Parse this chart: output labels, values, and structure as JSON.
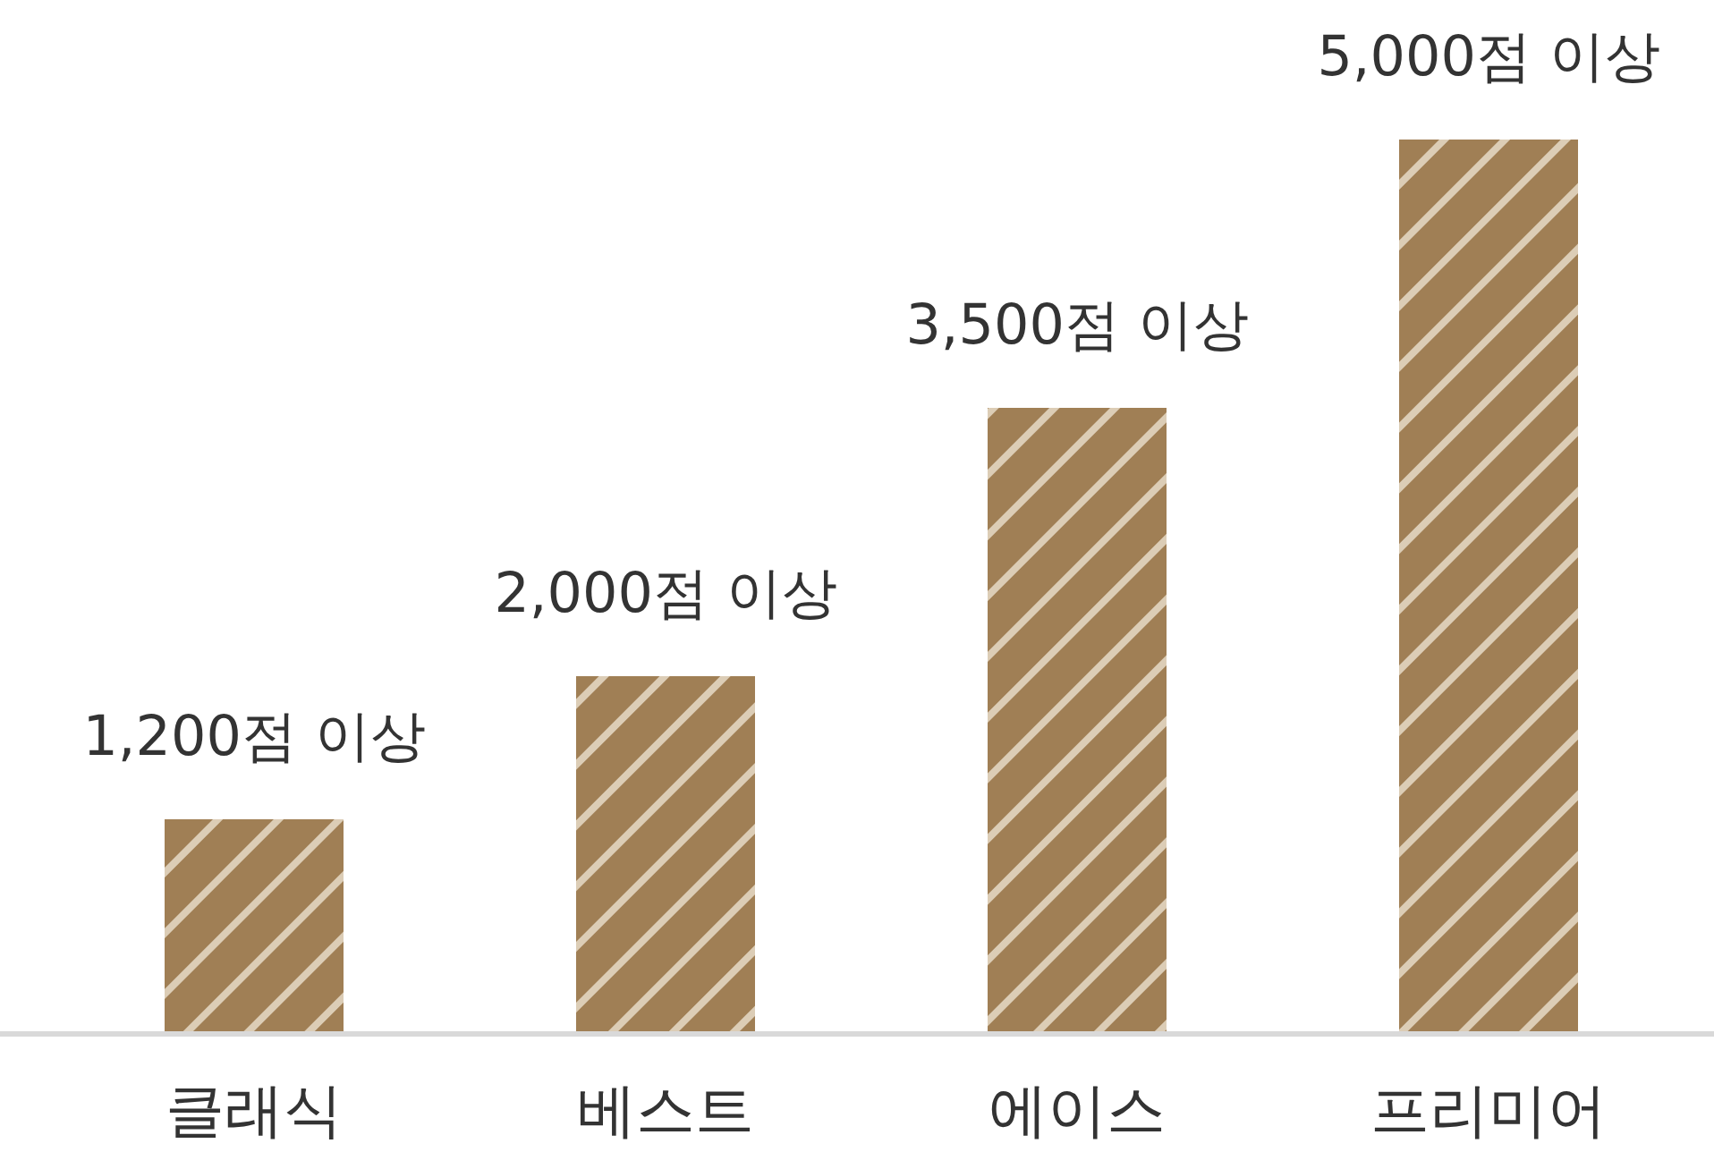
{
  "chart_data": {
    "type": "bar",
    "categories": [
      "클래식",
      "베스트",
      "에이스",
      "프리미어"
    ],
    "values": [
      1200,
      2000,
      3500,
      5000
    ],
    "value_labels": [
      "1,200점 이상",
      "2,000점 이상",
      "3,500점 이상",
      "5,000점 이상"
    ],
    "color": "#a07f55"
  }
}
